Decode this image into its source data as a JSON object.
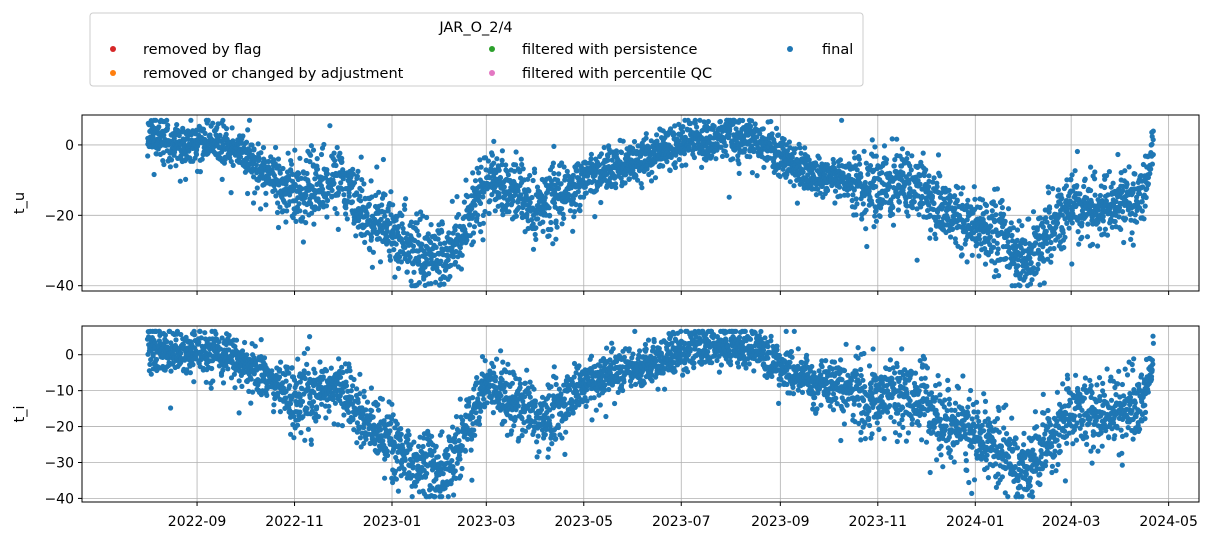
{
  "legend": {
    "title": "JAR_O_2/4",
    "entries": [
      {
        "label": "removed by flag",
        "color": "#d62728"
      },
      {
        "label": "removed or changed by adjustment",
        "color": "#ff7f0e"
      },
      {
        "label": "filtered with persistence",
        "color": "#2ca02c"
      },
      {
        "label": "filtered with percentile QC",
        "color": "#e377c2"
      },
      {
        "label": "final",
        "color": "#1f77b4"
      }
    ]
  },
  "chart_data": [
    {
      "type": "scatter",
      "ylabel": "t_u",
      "xlabel": "",
      "x_axis_type": "date",
      "xlim": [
        "2022-06-21",
        "2024-05-20"
      ],
      "ylim": [
        -41.5,
        8.5
      ],
      "yticks": [
        0,
        -20,
        -40
      ],
      "ytick_labels": [
        "0",
        "−20",
        "−40"
      ],
      "show_xtick_labels": false,
      "grid": true,
      "series": [
        {
          "name": "final",
          "color": "#1f77b4",
          "x": [
            "2022-08-01",
            "2022-08-15",
            "2022-09-01",
            "2022-09-20",
            "2022-10-15",
            "2022-11-01",
            "2022-11-15",
            "2022-12-01",
            "2022-12-15",
            "2023-01-01",
            "2023-01-15",
            "2023-02-01",
            "2023-02-10",
            "2023-03-01",
            "2023-03-15",
            "2023-04-01",
            "2023-04-15",
            "2023-05-01",
            "2023-05-15",
            "2023-06-01",
            "2023-06-15",
            "2023-07-01",
            "2023-07-15",
            "2023-08-01",
            "2023-08-20",
            "2023-09-01",
            "2023-09-15",
            "2023-10-01",
            "2023-10-15",
            "2023-11-01",
            "2023-11-15",
            "2023-12-01",
            "2023-12-15",
            "2024-01-01",
            "2024-01-15",
            "2024-02-01",
            "2024-02-15",
            "2024-03-01",
            "2024-03-15",
            "2024-04-01",
            "2024-04-15",
            "2024-04-21"
          ],
          "y": [
            2,
            0,
            1,
            0,
            -8,
            -15,
            -12,
            -10,
            -20,
            -25,
            -30,
            -33,
            -28,
            -10,
            -12,
            -18,
            -15,
            -10,
            -7,
            -5,
            -3,
            1,
            2,
            2,
            1,
            -3,
            -7,
            -9,
            -10,
            -12,
            -10,
            -13,
            -20,
            -22,
            -25,
            -33,
            -25,
            -17,
            -18,
            -17,
            -14,
            0
          ]
        }
      ]
    },
    {
      "type": "scatter",
      "ylabel": "t_i",
      "xlabel": "",
      "x_axis_type": "date",
      "xlim": [
        "2022-06-21",
        "2024-05-20"
      ],
      "ylim": [
        -41,
        8
      ],
      "yticks": [
        0,
        -10,
        -20,
        -30,
        -40
      ],
      "ytick_labels": [
        "0",
        "−10",
        "−20",
        "−30",
        "−40"
      ],
      "xticks": [
        "2022-09-01",
        "2022-11-01",
        "2023-01-01",
        "2023-03-01",
        "2023-05-01",
        "2023-07-01",
        "2023-09-01",
        "2023-11-01",
        "2024-01-01",
        "2024-03-01",
        "2024-05-01"
      ],
      "xtick_labels": [
        "2022-09",
        "2022-11",
        "2023-01",
        "2023-03",
        "2023-05",
        "2023-07",
        "2023-09",
        "2023-11",
        "2024-01",
        "2024-03",
        "2024-05"
      ],
      "grid": true,
      "series": [
        {
          "name": "final",
          "color": "#1f77b4",
          "x": [
            "2022-08-01",
            "2022-08-15",
            "2022-09-01",
            "2022-09-20",
            "2022-10-15",
            "2022-11-01",
            "2022-11-15",
            "2022-12-01",
            "2022-12-15",
            "2023-01-01",
            "2023-01-15",
            "2023-02-01",
            "2023-02-10",
            "2023-03-01",
            "2023-03-15",
            "2023-04-01",
            "2023-04-15",
            "2023-05-01",
            "2023-05-15",
            "2023-06-01",
            "2023-06-15",
            "2023-07-01",
            "2023-07-15",
            "2023-08-01",
            "2023-08-20",
            "2023-09-01",
            "2023-09-15",
            "2023-10-01",
            "2023-10-15",
            "2023-11-01",
            "2023-11-15",
            "2023-12-01",
            "2023-12-15",
            "2024-01-01",
            "2024-01-15",
            "2024-02-01",
            "2024-02-15",
            "2024-03-01",
            "2024-03-15",
            "2024-04-01",
            "2024-04-15",
            "2024-04-21"
          ],
          "y": [
            2,
            0,
            1,
            0,
            -7,
            -12,
            -10,
            -10,
            -18,
            -25,
            -30,
            -33,
            -27,
            -8,
            -12,
            -18,
            -15,
            -8,
            -6,
            -4,
            -2,
            1,
            2,
            2,
            1,
            -3,
            -6,
            -8,
            -10,
            -12,
            -10,
            -13,
            -20,
            -22,
            -26,
            -33,
            -25,
            -15,
            -17,
            -16,
            -13,
            0
          ]
        }
      ]
    }
  ]
}
